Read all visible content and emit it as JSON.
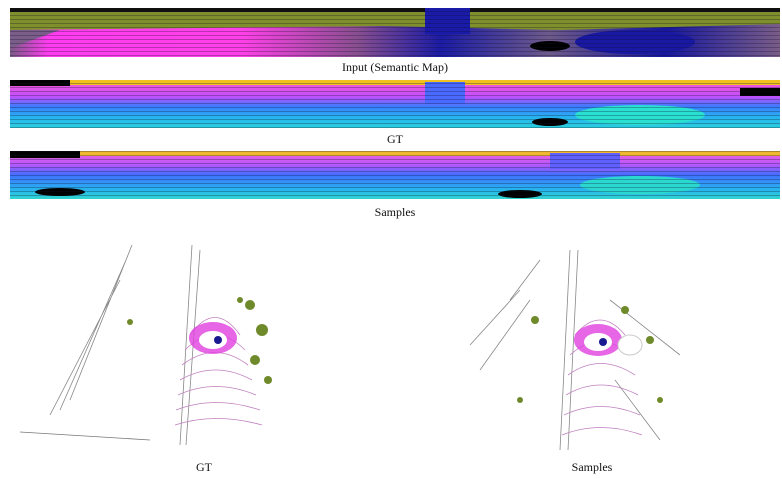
{
  "range_images": [
    {
      "caption": "Input (Semantic Map)"
    },
    {
      "caption": "GT"
    },
    {
      "caption": "Samples"
    }
  ],
  "point_clouds": [
    {
      "caption": "GT"
    },
    {
      "caption": "Samples"
    }
  ]
}
